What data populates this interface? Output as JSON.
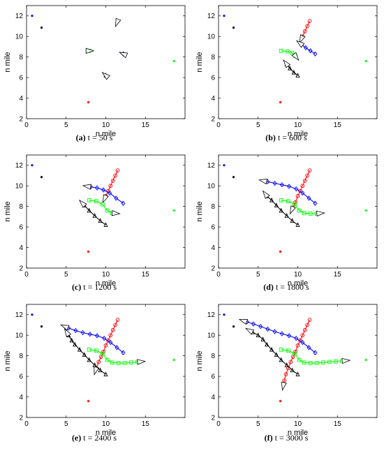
{
  "axis": {
    "xlabel": "n mile",
    "ylabel": "n mile",
    "xlim": [
      0,
      20
    ],
    "ylim": [
      2,
      13
    ],
    "xticks": [
      0,
      5,
      10,
      15
    ],
    "yticks": [
      2,
      4,
      6,
      8,
      10,
      12
    ]
  },
  "colors": {
    "blue": "#0000ff",
    "red": "#ff0000",
    "green": "#00ff00",
    "black": "#000000"
  },
  "endpoints": [
    {
      "color": "blue",
      "x": 0.7,
      "y": 12.0
    },
    {
      "color": "black",
      "x": 1.9,
      "y": 10.85
    },
    {
      "color": "green",
      "x": 18.6,
      "y": 7.6
    },
    {
      "color": "red",
      "x": 7.8,
      "y": 3.6
    }
  ],
  "chart_data": [
    {
      "type": "line",
      "caption": {
        "label": "(a)",
        "text": "t = 50 s"
      },
      "series": [
        {
          "color": "red",
          "marker": "circle",
          "x": [
            11.5,
            11.3
          ],
          "y": [
            11.5,
            11.1
          ]
        },
        {
          "color": "blue",
          "marker": "diamond",
          "x": [
            12.2,
            11.9
          ],
          "y": [
            8.3,
            8.4
          ]
        },
        {
          "color": "green",
          "marker": "square",
          "x": [
            7.9,
            8.3
          ],
          "y": [
            8.6,
            8.6
          ]
        },
        {
          "color": "black",
          "marker": "triangle",
          "x": [
            10.0,
            9.7
          ],
          "y": [
            6.2,
            6.4
          ]
        }
      ]
    },
    {
      "type": "line",
      "caption": {
        "label": "(b)",
        "text": "t = 600 s"
      },
      "series": [
        {
          "color": "red",
          "marker": "circle",
          "x": [
            11.5,
            11.2,
            10.9,
            10.6,
            10.3
          ],
          "y": [
            11.5,
            11.0,
            10.5,
            10.0,
            9.5
          ]
        },
        {
          "color": "blue",
          "marker": "diamond",
          "x": [
            12.2,
            11.6,
            11.0,
            10.5,
            10.0
          ],
          "y": [
            8.3,
            8.6,
            8.9,
            9.2,
            9.5
          ]
        },
        {
          "color": "green",
          "marker": "square",
          "x": [
            7.9,
            8.7,
            9.3,
            9.7,
            10.0
          ],
          "y": [
            8.6,
            8.55,
            8.4,
            8.1,
            7.8
          ]
        },
        {
          "color": "black",
          "marker": "triangle",
          "x": [
            10.0,
            9.5,
            9.0,
            8.6,
            8.3
          ],
          "y": [
            6.2,
            6.5,
            6.9,
            7.3,
            7.6
          ]
        }
      ]
    },
    {
      "type": "line",
      "caption": {
        "label": "(c)",
        "text": "t = 1200 s"
      },
      "series": [
        {
          "color": "red",
          "marker": "circle",
          "x": [
            11.5,
            11.2,
            10.9,
            10.6,
            10.3,
            10.0,
            9.7
          ],
          "y": [
            11.5,
            11.0,
            10.5,
            10.0,
            9.5,
            9.0,
            8.5
          ]
        },
        {
          "color": "blue",
          "marker": "diamond",
          "x": [
            12.2,
            11.3,
            10.5,
            9.7,
            8.9,
            8.1,
            7.3
          ],
          "y": [
            8.3,
            8.8,
            9.3,
            9.6,
            9.8,
            9.9,
            10.0
          ]
        },
        {
          "color": "green",
          "marker": "square",
          "x": [
            7.9,
            8.8,
            9.6,
            10.2,
            10.8,
            11.6
          ],
          "y": [
            8.6,
            8.5,
            8.2,
            7.6,
            7.35,
            7.3
          ]
        },
        {
          "color": "black",
          "marker": "triangle",
          "x": [
            10.0,
            9.3,
            8.6,
            7.9,
            7.3,
            6.8
          ],
          "y": [
            6.2,
            6.6,
            7.1,
            7.6,
            8.1,
            8.5
          ]
        }
      ]
    },
    {
      "type": "line",
      "caption": {
        "label": "(d)",
        "text": "t = 1800 s"
      },
      "series": [
        {
          "color": "red",
          "marker": "circle",
          "x": [
            11.5,
            11.2,
            10.9,
            10.6,
            10.3,
            10.0,
            9.7,
            9.4,
            9.1
          ],
          "y": [
            11.5,
            11.0,
            10.5,
            10.0,
            9.5,
            9.0,
            8.4,
            7.9,
            7.4
          ]
        },
        {
          "color": "blue",
          "marker": "diamond",
          "x": [
            12.2,
            11.4,
            10.6,
            9.8,
            8.9,
            8.0,
            7.1,
            6.2,
            5.3
          ],
          "y": [
            8.3,
            8.8,
            9.3,
            9.7,
            9.95,
            10.1,
            10.25,
            10.4,
            10.55
          ]
        },
        {
          "color": "green",
          "marker": "square",
          "x": [
            7.9,
            8.8,
            9.6,
            10.2,
            10.8,
            11.6,
            12.4,
            13.2
          ],
          "y": [
            8.6,
            8.5,
            8.2,
            7.6,
            7.35,
            7.3,
            7.3,
            7.35
          ]
        },
        {
          "color": "black",
          "marker": "triangle",
          "x": [
            10.0,
            9.3,
            8.6,
            7.9,
            7.3,
            6.7,
            6.1,
            5.7
          ],
          "y": [
            6.2,
            6.6,
            7.1,
            7.6,
            8.1,
            8.6,
            9.0,
            9.4
          ]
        }
      ]
    },
    {
      "type": "line",
      "caption": {
        "label": "(e)",
        "text": "t = 2400 s"
      },
      "series": [
        {
          "color": "red",
          "marker": "circle",
          "x": [
            11.5,
            11.2,
            10.9,
            10.6,
            10.3,
            10.0,
            9.7,
            9.4,
            9.1,
            8.8,
            8.6
          ],
          "y": [
            11.5,
            11.0,
            10.5,
            10.0,
            9.5,
            9.0,
            8.4,
            7.9,
            7.4,
            6.8,
            6.3
          ]
        },
        {
          "color": "blue",
          "marker": "diamond",
          "x": [
            12.2,
            11.4,
            10.6,
            9.8,
            8.9,
            8.0,
            7.1,
            6.2,
            5.3,
            4.5
          ],
          "y": [
            8.3,
            8.8,
            9.3,
            9.7,
            9.95,
            10.1,
            10.25,
            10.45,
            10.7,
            10.95
          ]
        },
        {
          "color": "green",
          "marker": "square",
          "x": [
            7.9,
            8.8,
            9.6,
            10.2,
            10.8,
            11.6,
            12.4,
            13.2,
            14.0,
            14.8
          ],
          "y": [
            8.6,
            8.5,
            8.2,
            7.6,
            7.35,
            7.3,
            7.3,
            7.35,
            7.4,
            7.45
          ]
        },
        {
          "color": "black",
          "marker": "triangle",
          "x": [
            10.0,
            9.3,
            8.6,
            7.9,
            7.3,
            6.7,
            6.1,
            5.7,
            5.3,
            4.9
          ],
          "y": [
            6.2,
            6.6,
            7.1,
            7.6,
            8.1,
            8.6,
            9.1,
            9.5,
            10.0,
            10.5
          ]
        }
      ]
    },
    {
      "type": "line",
      "caption": {
        "label": "(f)",
        "text": "t = 3000 s"
      },
      "series": [
        {
          "color": "red",
          "marker": "circle",
          "x": [
            11.5,
            11.2,
            10.9,
            10.6,
            10.3,
            10.0,
            9.7,
            9.4,
            9.1,
            8.8,
            8.5,
            8.3,
            8.1
          ],
          "y": [
            11.5,
            11.0,
            10.5,
            10.0,
            9.5,
            9.0,
            8.4,
            7.9,
            7.4,
            6.8,
            6.2,
            5.6,
            4.8
          ]
        },
        {
          "color": "blue",
          "marker": "diamond",
          "x": [
            12.2,
            11.4,
            10.6,
            9.8,
            8.9,
            8.0,
            7.1,
            6.2,
            5.3,
            4.4,
            3.6,
            2.8
          ],
          "y": [
            8.3,
            8.8,
            9.3,
            9.7,
            9.95,
            10.15,
            10.35,
            10.6,
            10.85,
            11.1,
            11.3,
            11.5
          ]
        },
        {
          "color": "green",
          "marker": "square",
          "x": [
            7.9,
            8.8,
            9.6,
            10.2,
            10.8,
            11.6,
            12.4,
            13.2,
            14.0,
            14.8,
            15.6,
            16.4
          ],
          "y": [
            8.6,
            8.5,
            8.2,
            7.6,
            7.35,
            7.3,
            7.3,
            7.35,
            7.4,
            7.45,
            7.5,
            7.55
          ]
        },
        {
          "color": "black",
          "marker": "triangle",
          "x": [
            10.0,
            9.3,
            8.6,
            7.9,
            7.3,
            6.7,
            6.1,
            5.6,
            5.0,
            4.3,
            3.6
          ],
          "y": [
            6.2,
            6.6,
            7.1,
            7.6,
            8.1,
            8.6,
            9.1,
            9.6,
            10.0,
            10.3,
            10.6
          ]
        }
      ]
    }
  ]
}
